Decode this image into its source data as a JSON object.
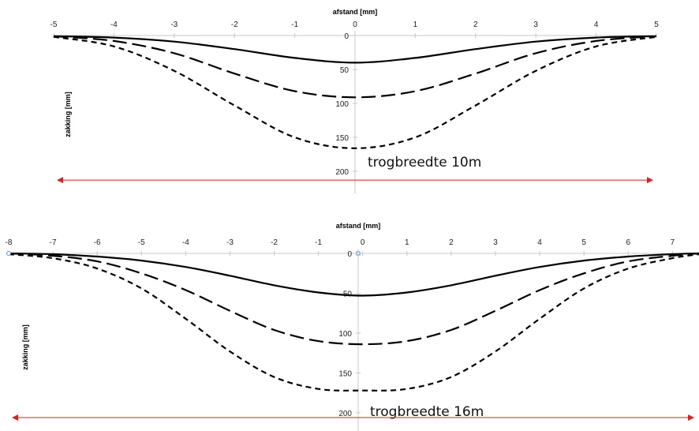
{
  "colors": {
    "axis": "#c8c8c8",
    "curve": "#000000",
    "arrow": "#e02020"
  },
  "chart_data": [
    {
      "type": "line",
      "xlabel": "afstand [mm]",
      "ylabel": "zakking  [mm]",
      "xlim": [
        -5,
        5
      ],
      "ylim": [
        0,
        200
      ],
      "y_inverted": true,
      "x_ticks": [
        -5,
        -4,
        -3,
        -2,
        -1,
        0,
        1,
        2,
        3,
        4,
        5
      ],
      "y_ticks": [
        0,
        50,
        100,
        150,
        200
      ],
      "series": [
        {
          "style": "solid",
          "x": [
            -5,
            -4,
            -3,
            -2,
            -1,
            0,
            1,
            2,
            3,
            4,
            5
          ],
          "y": [
            1,
            3,
            9,
            20,
            33,
            40,
            33,
            20,
            9,
            3,
            1
          ]
        },
        {
          "style": "long-dash",
          "x": [
            -5,
            -4,
            -3,
            -2,
            -1,
            0,
            1,
            2,
            3,
            4,
            5
          ],
          "y": [
            1,
            8,
            26,
            56,
            82,
            91,
            82,
            56,
            26,
            8,
            1
          ]
        },
        {
          "style": "short-dash",
          "x": [
            -5,
            -4,
            -3,
            -2,
            -1,
            0,
            1,
            2,
            3,
            4,
            5
          ],
          "y": [
            2,
            16,
            52,
            103,
            150,
            166,
            150,
            103,
            52,
            16,
            2
          ]
        }
      ],
      "annotation": "trogbreedte 10m",
      "arrow_x_range": [
        -5,
        5
      ],
      "arrow_y": 213
    },
    {
      "type": "line",
      "xlabel": "afstand [mm]",
      "ylabel": "zakking  [mm]",
      "xlim": [
        -8,
        7.6
      ],
      "ylim": [
        0,
        200
      ],
      "y_inverted": true,
      "x_ticks": [
        -8,
        -7,
        -6,
        -5,
        -4,
        -3,
        -2,
        -1,
        0,
        1,
        2,
        3,
        4,
        5,
        6,
        7
      ],
      "y_ticks": [
        0,
        50,
        100,
        150,
        200
      ],
      "series": [
        {
          "style": "solid",
          "x": [
            -8,
            -7,
            -6,
            -5,
            -4,
            -3,
            -2,
            -1,
            0,
            1,
            2,
            3,
            4,
            5,
            6,
            7,
            7.6
          ],
          "y": [
            0,
            1,
            4,
            9,
            17,
            28,
            40,
            49,
            53,
            49,
            40,
            28,
            17,
            9,
            4,
            1,
            0
          ]
        },
        {
          "style": "long-dash",
          "x": [
            -8,
            -7,
            -6,
            -5,
            -4,
            -3,
            -2,
            -1,
            0,
            1,
            2,
            3,
            4,
            5,
            6,
            7,
            7.6
          ],
          "y": [
            0,
            3,
            10,
            25,
            46,
            72,
            96,
            110,
            114,
            110,
            96,
            72,
            46,
            25,
            10,
            3,
            0
          ]
        },
        {
          "style": "short-dash",
          "x": [
            -8,
            -7,
            -6,
            -5,
            -4,
            -3,
            -2,
            -1,
            0,
            1,
            2,
            3,
            4,
            5,
            6,
            7,
            7.6
          ],
          "y": [
            1,
            6,
            19,
            44,
            82,
            123,
            155,
            170,
            172,
            170,
            155,
            123,
            82,
            44,
            19,
            6,
            1
          ]
        }
      ],
      "annotation": "trogbreedte 16m",
      "arrow_x_range": [
        -8,
        7.6
      ],
      "arrow_y": 206
    }
  ]
}
